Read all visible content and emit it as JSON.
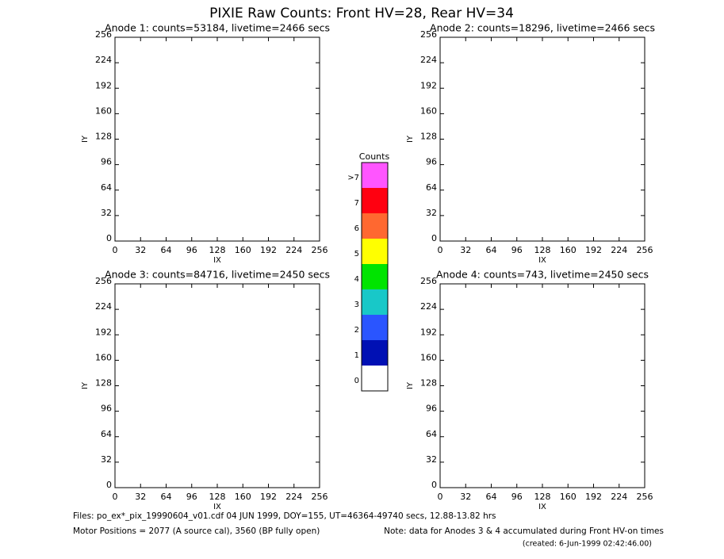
{
  "title": "PIXIE Raw Counts:  Front HV=28, Rear HV=34",
  "chart_data": [
    {
      "type": "heatmap",
      "title": "Anode 1: counts=53184, livetime=2466 secs",
      "xlabel": "IX",
      "ylabel": "IY",
      "xlim": [
        0,
        256
      ],
      "ylim": [
        0,
        256
      ],
      "xticks": [
        0,
        32,
        64,
        96,
        128,
        160,
        192,
        224,
        256
      ],
      "yticks": [
        0,
        32,
        64,
        96,
        128,
        160,
        192,
        224,
        256
      ]
    },
    {
      "type": "heatmap",
      "title": "Anode 2: counts=18296, livetime=2466 secs",
      "xlabel": "IX",
      "ylabel": "IY",
      "xlim": [
        0,
        256
      ],
      "ylim": [
        0,
        256
      ],
      "xticks": [
        0,
        32,
        64,
        96,
        128,
        160,
        192,
        224,
        256
      ],
      "yticks": [
        0,
        32,
        64,
        96,
        128,
        160,
        192,
        224,
        256
      ]
    },
    {
      "type": "heatmap",
      "title": "Anode 3: counts=84716, livetime=2450 secs",
      "xlabel": "IX",
      "ylabel": "IY",
      "xlim": [
        0,
        256
      ],
      "ylim": [
        0,
        256
      ],
      "xticks": [
        0,
        32,
        64,
        96,
        128,
        160,
        192,
        224,
        256
      ],
      "yticks": [
        0,
        32,
        64,
        96,
        128,
        160,
        192,
        224,
        256
      ]
    },
    {
      "type": "heatmap",
      "title": "Anode 4: counts=743, livetime=2450 secs",
      "xlabel": "IX",
      "ylabel": "IY",
      "xlim": [
        0,
        256
      ],
      "ylim": [
        0,
        256
      ],
      "xticks": [
        0,
        32,
        64,
        96,
        128,
        160,
        192,
        224,
        256
      ],
      "yticks": [
        0,
        32,
        64,
        96,
        128,
        160,
        192,
        224,
        256
      ]
    }
  ],
  "colorbar": {
    "title": "Counts",
    "levels": [
      {
        "label": "0",
        "color": "#ffffff"
      },
      {
        "label": "1",
        "color": "#0010b4"
      },
      {
        "label": "2",
        "color": "#2a55ff"
      },
      {
        "label": "3",
        "color": "#18c8c8"
      },
      {
        "label": "4",
        "color": "#00e400"
      },
      {
        "label": "5",
        "color": "#ffff00"
      },
      {
        "label": "6",
        "color": "#ff6830"
      },
      {
        "label": "7",
        "color": "#ff0010"
      },
      {
        "label": ">7",
        "color": "#ff55ff"
      }
    ]
  },
  "footer": {
    "files": "Files: po_ex*_pix_19990604_v01.cdf    04 JUN 1999, DOY=155, UT=46364-49740 secs, 12.88-13.82 hrs",
    "motor": "Motor Positions = 2077 (A source cal), 3560 (BP fully open)",
    "note": "Note: data for Anodes 3 & 4 accumulated during Front HV-on times",
    "created": "(created:  6-Jun-1999 02:42:46.00)"
  }
}
